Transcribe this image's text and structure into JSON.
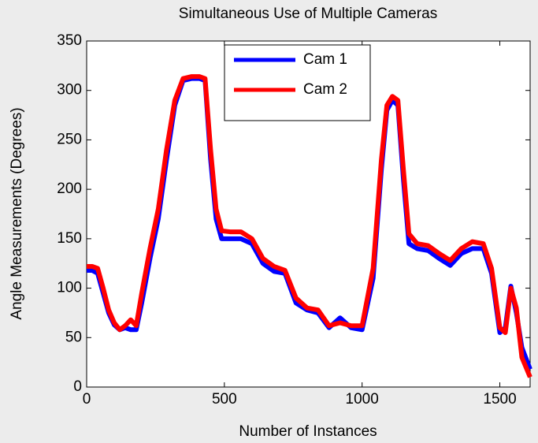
{
  "chart_data": {
    "type": "line",
    "title": "Simultaneous Use of Multiple Cameras",
    "xlabel": "Number of Instances",
    "ylabel": "Angle Measurements (Degrees)",
    "x": [
      0,
      20,
      40,
      60,
      80,
      100,
      120,
      140,
      160,
      180,
      200,
      230,
      260,
      290,
      320,
      350,
      380,
      410,
      430,
      450,
      470,
      490,
      520,
      560,
      600,
      640,
      680,
      720,
      760,
      800,
      840,
      880,
      920,
      960,
      1000,
      1040,
      1070,
      1090,
      1110,
      1130,
      1150,
      1170,
      1200,
      1240,
      1280,
      1320,
      1360,
      1400,
      1440,
      1470,
      1500,
      1520,
      1540,
      1560,
      1580,
      1610
    ],
    "series": [
      {
        "name": "Cam 1",
        "color": "#0000ff",
        "values": [
          118,
          118,
          115,
          95,
          75,
          63,
          58,
          60,
          58,
          58,
          85,
          130,
          170,
          230,
          285,
          310,
          312,
          312,
          310,
          230,
          170,
          150,
          150,
          150,
          145,
          125,
          117,
          115,
          85,
          78,
          75,
          60,
          70,
          60,
          58,
          110,
          220,
          280,
          290,
          285,
          210,
          145,
          140,
          138,
          130,
          123,
          135,
          140,
          140,
          115,
          55,
          60,
          102,
          75,
          40,
          18
        ]
      },
      {
        "name": "Cam 2",
        "color": "#ff0000",
        "values": [
          122,
          122,
          120,
          100,
          78,
          65,
          58,
          62,
          68,
          62,
          95,
          140,
          180,
          240,
          290,
          312,
          314,
          314,
          312,
          240,
          180,
          158,
          157,
          157,
          150,
          130,
          122,
          118,
          90,
          80,
          78,
          62,
          65,
          62,
          62,
          120,
          230,
          285,
          294,
          290,
          220,
          155,
          145,
          143,
          135,
          128,
          140,
          147,
          145,
          120,
          60,
          55,
          100,
          80,
          30,
          10
        ]
      }
    ],
    "xlim": [
      0,
      1610
    ],
    "xticks": [
      0,
      500,
      1000,
      1500
    ],
    "ylim": [
      0,
      350
    ],
    "yticks": [
      0,
      50,
      100,
      150,
      200,
      250,
      300,
      350
    ],
    "legend": "top"
  }
}
